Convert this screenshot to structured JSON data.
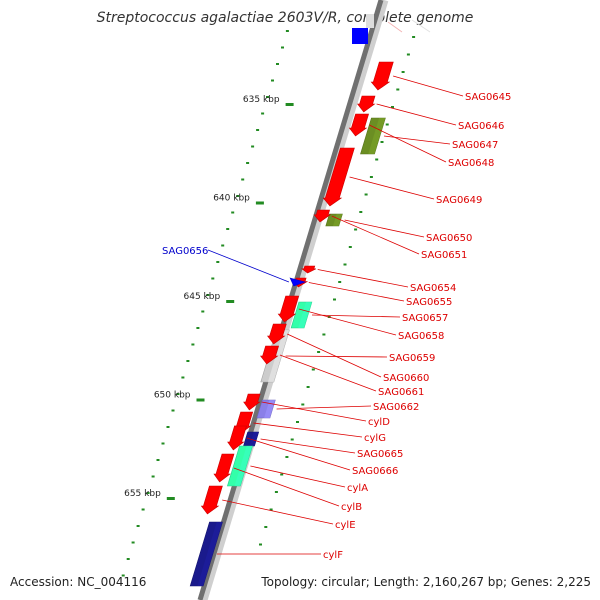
{
  "title": "Streptococcus agalactiae 2603V/R, complete genome",
  "footer": {
    "accession": "Accession: NC_004116",
    "info": "Topology: circular; Length: 2,160,267 bp; Genes: 2,225"
  },
  "colors": {
    "backbone": "#777777",
    "ticks": "#228b22",
    "red": "#ff0000",
    "olive": "#6b8e23",
    "mint": "#33ffaa",
    "grey": "#cccccc",
    "purple": "#8a7fe8",
    "navy": "#1a1a8c",
    "steel": "#5a9bd4",
    "blue": "#0000ff",
    "label_red": "#dd0000",
    "label_blue": "#0000cc"
  },
  "scale": {
    "unit": "kbp",
    "ticks": [
      {
        "label": "635 kbp",
        "kbp": 635
      },
      {
        "label": "640 kbp",
        "kbp": 640
      },
      {
        "label": "645 kbp",
        "kbp": 645
      },
      {
        "label": "650 kbp",
        "kbp": 650
      },
      {
        "label": "655 kbp",
        "kbp": 655
      }
    ]
  },
  "genes": [
    {
      "label": "SAG0645",
      "color": "red",
      "strand": "+"
    },
    {
      "label": "SAG0646",
      "color": "red",
      "strand": "+"
    },
    {
      "label": "SAG0647",
      "color": "olive",
      "strand": "+"
    },
    {
      "label": "SAG0648",
      "color": "red",
      "strand": "+"
    },
    {
      "label": "SAG0649",
      "color": "red",
      "strand": "+"
    },
    {
      "label": "SAG0650",
      "color": "olive",
      "strand": "+"
    },
    {
      "label": "SAG0651",
      "color": "red",
      "strand": "+"
    },
    {
      "label": "SAG0654",
      "color": "red",
      "strand": "+"
    },
    {
      "label": "SAG0655",
      "color": "red",
      "strand": "+"
    },
    {
      "label": "SAG0657",
      "color": "mint",
      "strand": "+"
    },
    {
      "label": "SAG0658",
      "color": "red",
      "strand": "+"
    },
    {
      "label": "SAG0659",
      "color": "grey",
      "strand": "+"
    },
    {
      "label": "SAG0660",
      "color": "red",
      "strand": "+"
    },
    {
      "label": "SAG0661",
      "color": "red",
      "strand": "+"
    },
    {
      "label": "SAG0662",
      "color": "purple",
      "strand": "+"
    },
    {
      "label": "cylD",
      "color": "red",
      "strand": "+"
    },
    {
      "label": "cylG",
      "color": "red",
      "strand": "+"
    },
    {
      "label": "SAG0665",
      "color": "navy",
      "strand": "+"
    },
    {
      "label": "SAG0666",
      "color": "red",
      "strand": "+"
    },
    {
      "label": "cylA",
      "color": "mint",
      "strand": "+"
    },
    {
      "label": "cylB",
      "color": "red",
      "strand": "+"
    },
    {
      "label": "cylE",
      "color": "red",
      "strand": "+"
    },
    {
      "label": "cylF",
      "color": "navy",
      "strand": "+"
    },
    {
      "label": "SAG0656",
      "color": "blue",
      "strand": "-"
    }
  ]
}
